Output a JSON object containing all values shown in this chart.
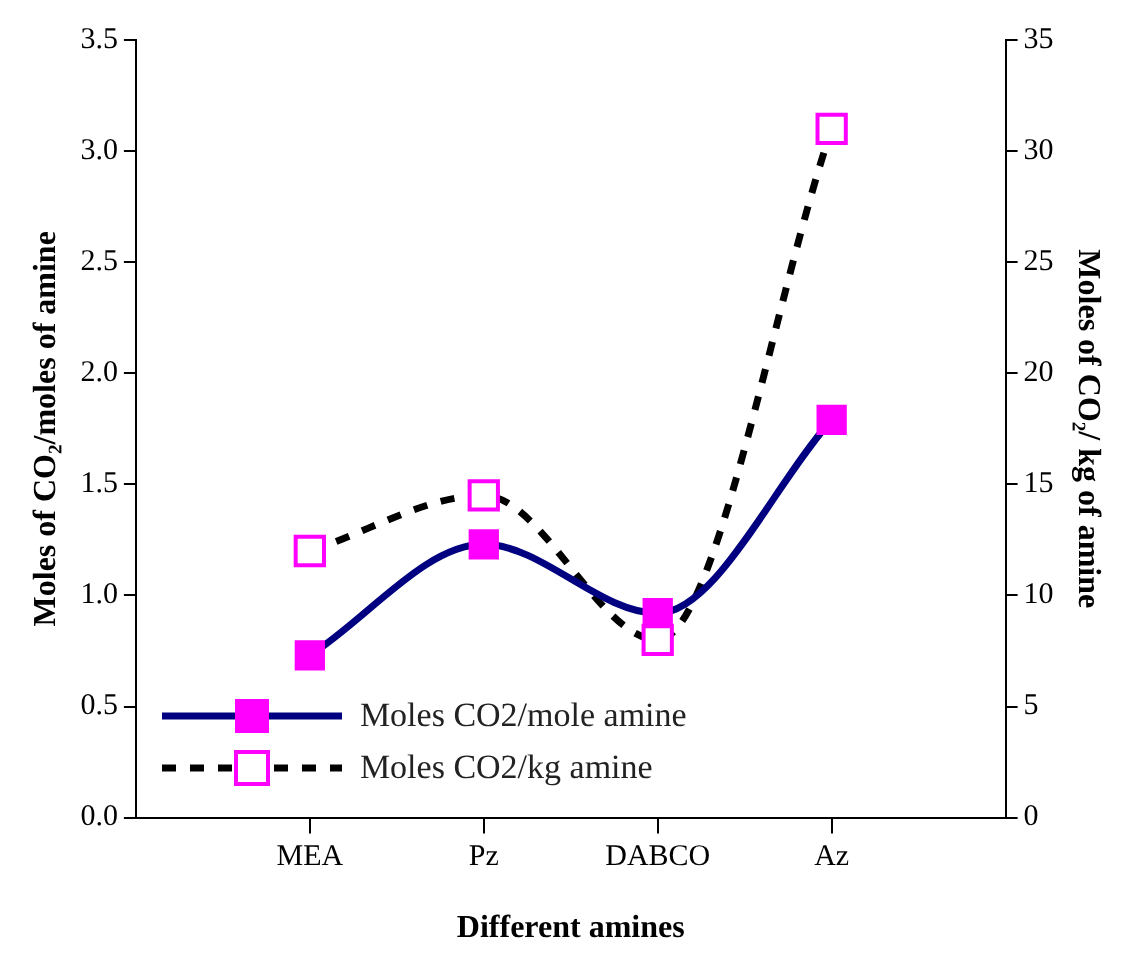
{
  "chart_data": {
    "type": "line",
    "xlabel": "Different amines",
    "ylabel": "Moles of CO₂/moles of amine",
    "y2label": "Moles of CO₂/ kg of amine",
    "categories": [
      "MEA",
      "Pz",
      "DABCO",
      "Az"
    ],
    "series": [
      {
        "name": "Moles CO2/mole amine",
        "color": "#000080",
        "values": [
          0.73,
          1.23,
          0.92,
          1.79
        ],
        "line_style": "solid"
      },
      {
        "name": "Moles CO2/kg amine",
        "color": "#000000",
        "values": [
          12.0,
          14.5,
          8.0,
          31.0
        ],
        "axis": "y2",
        "line_style": "dashed"
      }
    ],
    "ylim": [
      0,
      3.5
    ],
    "yticks": [
      {
        "value": 0,
        "label": "0.0"
      },
      {
        "value": 0.5,
        "label": "0.5"
      },
      {
        "value": 1,
        "label": "1.0"
      },
      {
        "value": 1.5,
        "label": "1.5"
      },
      {
        "value": 2,
        "label": "2.0"
      },
      {
        "value": 2.5,
        "label": "2.5"
      },
      {
        "value": 3,
        "label": "3.0"
      },
      {
        "value": 3.5,
        "label": "3.5"
      }
    ],
    "y2lim": [
      0,
      35
    ],
    "y2ticks": [
      0,
      5,
      10,
      15,
      20,
      25,
      30,
      35
    ],
    "grid": false,
    "legend": "bottom left",
    "marker": "square"
  }
}
